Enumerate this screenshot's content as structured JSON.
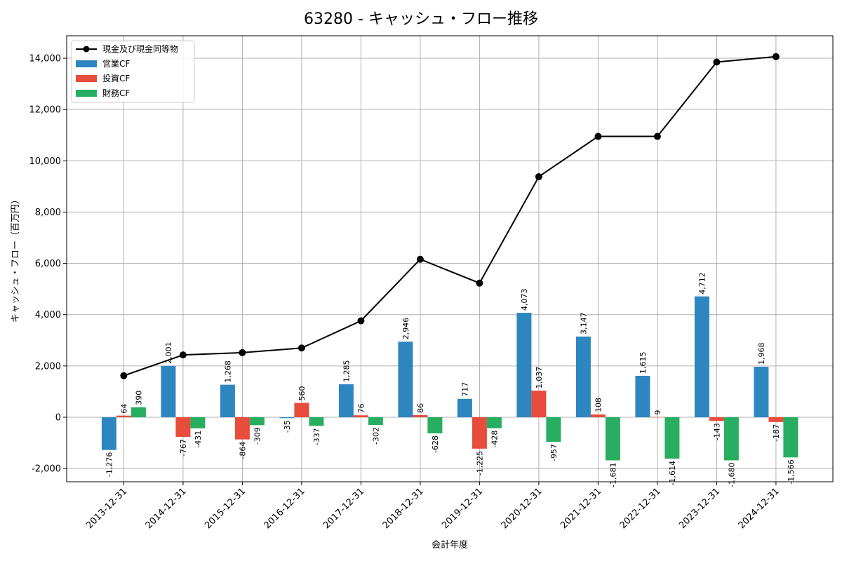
{
  "chart_data": {
    "type": "bar",
    "title": "63280 - キャッシュ・フロー推移",
    "xlabel": "会計年度",
    "ylabel": "キャッシュ・フロー（百万円）",
    "ylim": [
      -2500,
      14800
    ],
    "yticks": [
      -2000,
      0,
      2000,
      4000,
      6000,
      8000,
      10000,
      12000,
      14000
    ],
    "ytick_labels": [
      "-2,000",
      "0",
      "2,000",
      "4,000",
      "6,000",
      "8,000",
      "10,000",
      "12,000",
      "14,000"
    ],
    "grid": true,
    "legend_position": "top-left",
    "categories": [
      "2013-12-31",
      "2014-12-31",
      "2015-12-31",
      "2016-12-31",
      "2017-12-31",
      "2018-12-31",
      "2019-12-31",
      "2020-12-31",
      "2021-12-31",
      "2022-12-31",
      "2023-12-31",
      "2024-12-31"
    ],
    "series": [
      {
        "name": "営業CF",
        "type": "bar",
        "color": "#2e86c1",
        "values": [
          -1276,
          2001,
          1268,
          -35,
          1285,
          2946,
          717,
          4073,
          3147,
          1615,
          4712,
          1968
        ],
        "labels": [
          "-1,276",
          "2,001",
          "1,268",
          "-35",
          "1,285",
          "2,946",
          "717",
          "4,073",
          "3,147",
          "1,615",
          "4,712",
          "1,968"
        ]
      },
      {
        "name": "投資CF",
        "type": "bar",
        "color": "#e74c3c",
        "values": [
          64,
          -767,
          -864,
          560,
          76,
          86,
          -1225,
          1037,
          108,
          9,
          -143,
          -187
        ],
        "labels": [
          "64",
          "-767",
          "-864",
          "560",
          "76",
          "86",
          "-1,225",
          "1,037",
          "108",
          "9",
          "-143",
          "-187"
        ]
      },
      {
        "name": "財務CF",
        "type": "bar",
        "color": "#27ae60",
        "values": [
          390,
          -431,
          -309,
          -337,
          -302,
          -628,
          -428,
          -957,
          -1681,
          -1614,
          -1680,
          -1566
        ],
        "labels": [
          "390",
          "-431",
          "-309",
          "-337",
          "-302",
          "-628",
          "-428",
          "-957",
          "-1,681",
          "-1,614",
          "-1,680",
          "-1,566"
        ]
      },
      {
        "name": "現金及び現金同等物",
        "type": "line",
        "color": "#000000",
        "values": [
          1620,
          2430,
          2520,
          2700,
          3760,
          6160,
          5230,
          9380,
          10950,
          10950,
          13850,
          14060
        ]
      }
    ]
  }
}
